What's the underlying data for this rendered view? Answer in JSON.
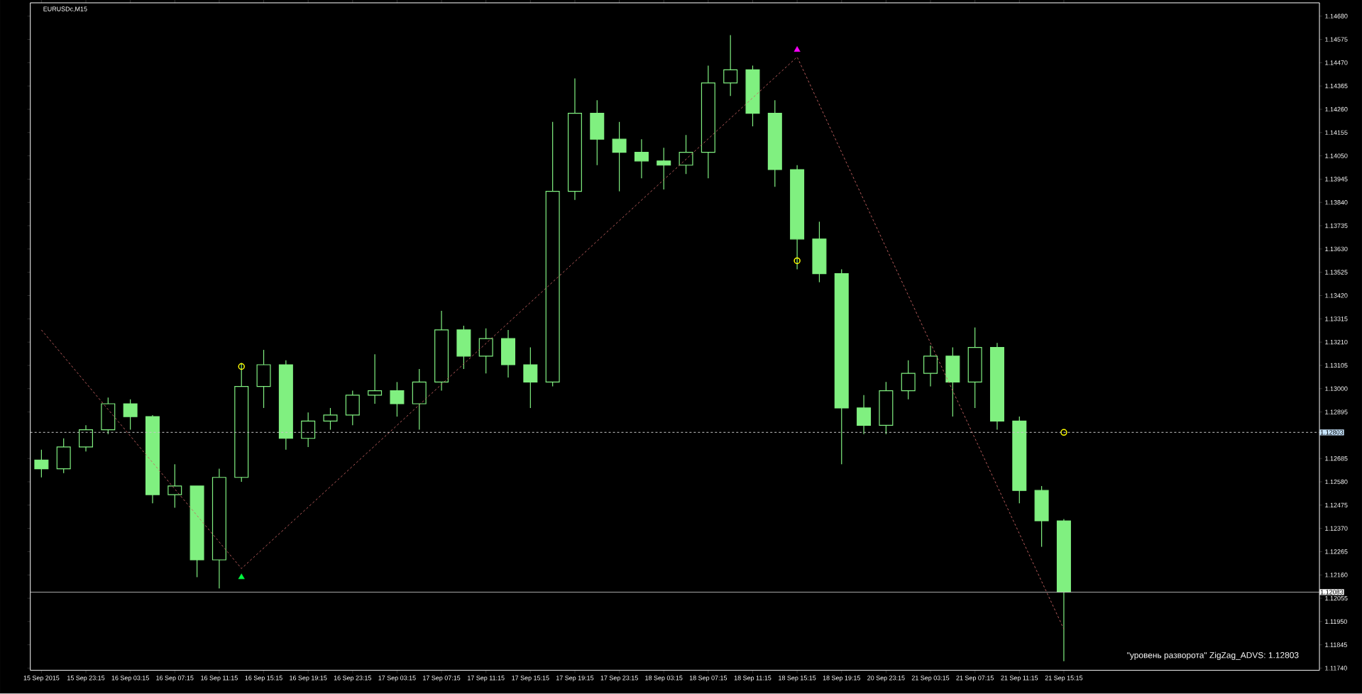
{
  "chart_data": {
    "type": "candlestick",
    "title": "EURUSDc,M15",
    "annotations": [
      "\"уровень разворота\" ZigZag_ADVS:   1.12803"
    ],
    "color": "#80f080",
    "categories": [
      "15 Sep 2015",
      null,
      "15 Sep 23:15",
      null,
      "16 Sep 03:15",
      null,
      "16 Sep 07:15",
      null,
      "16 Sep 11:15",
      null,
      "16 Sep 15:15",
      null,
      "16 Sep 19:15",
      null,
      "16 Sep 23:15",
      null,
      "17 Sep 03:15",
      null,
      "17 Sep 07:15",
      null,
      "17 Sep 11:15",
      null,
      "17 Sep 15:15",
      null,
      "17 Sep 19:15",
      null,
      "17 Sep 23:15",
      null,
      "18 Sep 03:15",
      null,
      "18 Sep 07:15",
      null,
      "18 Sep 11:15",
      null,
      "18 Sep 15:15",
      null,
      "18 Sep 19:15",
      null,
      "20 Sep 23:15",
      null,
      "21 Sep 03:15",
      null,
      "21 Sep 07:15",
      null,
      "21 Sep 11:15",
      null,
      "21 Sep 15:15",
      null,
      null,
      null,
      null,
      null,
      null,
      null,
      null,
      null,
      null,
      null
    ],
    "ohlc": [
      [
        1.12678,
        1.12725,
        1.126,
        1.12639
      ],
      [
        1.12639,
        1.12776,
        1.12619,
        1.12737
      ],
      [
        1.12737,
        1.12835,
        1.12717,
        1.12815
      ],
      [
        1.12815,
        1.1296,
        1.12795,
        1.12932
      ],
      [
        1.12932,
        1.12952,
        1.12815,
        1.12874
      ],
      [
        1.12874,
        1.12881,
        1.12483,
        1.12522
      ],
      [
        1.12522,
        1.12659,
        1.12463,
        1.12561
      ],
      [
        1.12561,
        1.12561,
        1.1215,
        1.12228
      ],
      [
        1.12228,
        1.12639,
        1.12099,
        1.126
      ],
      [
        1.126,
        1.13116,
        1.1258,
        1.1301
      ],
      [
        1.1301,
        1.13175,
        1.12913,
        1.13108
      ],
      [
        1.13108,
        1.13128,
        1.12725,
        1.12776
      ],
      [
        1.12776,
        1.12893,
        1.12737,
        1.12854
      ],
      [
        1.12854,
        1.12913,
        1.12815,
        1.12881
      ],
      [
        1.12881,
        1.12991,
        1.12835,
        1.12971
      ],
      [
        1.12971,
        1.13155,
        1.12932,
        1.12991
      ],
      [
        1.12991,
        1.1303,
        1.12874,
        1.12932
      ],
      [
        1.12932,
        1.13089,
        1.12815,
        1.1303
      ],
      [
        1.1303,
        1.13351,
        1.12991,
        1.13265
      ],
      [
        1.13265,
        1.13284,
        1.13089,
        1.13147
      ],
      [
        1.13147,
        1.13272,
        1.13069,
        1.13226
      ],
      [
        1.13226,
        1.13265,
        1.1305,
        1.13108
      ],
      [
        1.13108,
        1.13186,
        1.12913,
        1.1303
      ],
      [
        1.1303,
        1.14203,
        1.1301,
        1.1389
      ],
      [
        1.1389,
        1.14399,
        1.13851,
        1.14242
      ],
      [
        1.14242,
        1.14301,
        1.14008,
        1.14125
      ],
      [
        1.14125,
        1.14203,
        1.1389,
        1.14066
      ],
      [
        1.14066,
        1.14125,
        1.13949,
        1.14027
      ],
      [
        1.14027,
        1.14086,
        1.13898,
        1.14008
      ],
      [
        1.14008,
        1.14144,
        1.13968,
        1.14066
      ],
      [
        1.14066,
        1.14457,
        1.13949,
        1.14379
      ],
      [
        1.14379,
        1.14594,
        1.1432,
        1.14438
      ],
      [
        1.14438,
        1.14457,
        1.14183,
        1.14242
      ],
      [
        1.14242,
        1.14301,
        1.1391,
        1.13988
      ],
      [
        1.13988,
        1.14008,
        1.13538,
        1.13675
      ],
      [
        1.13675,
        1.13753,
        1.1348,
        1.13519
      ],
      [
        1.13519,
        1.13538,
        1.12659,
        1.12913
      ],
      [
        1.12913,
        1.12971,
        1.12795,
        1.12835
      ],
      [
        1.12835,
        1.1303,
        1.12795,
        1.12991
      ],
      [
        1.12991,
        1.13128,
        1.12952,
        1.13069
      ],
      [
        1.13069,
        1.13194,
        1.1301,
        1.13147
      ],
      [
        1.13147,
        1.13186,
        1.12874,
        1.1303
      ],
      [
        1.1303,
        1.13276,
        1.12913,
        1.13186
      ],
      [
        1.13186,
        1.13206,
        1.12815,
        1.12854
      ],
      [
        1.12854,
        1.12874,
        1.12483,
        1.12541
      ],
      [
        1.12541,
        1.12561,
        1.12287,
        1.12404
      ],
      [
        1.12404,
        1.12412,
        1.11771,
        1.12083
      ],
      null,
      null,
      null,
      null,
      null,
      null,
      null,
      null,
      null,
      null,
      null
    ],
    "series": [
      {
        "type": "line",
        "color": "#c86464",
        "line_style": "dashed",
        "marker": "none",
        "values": [
          1.13265,
          null,
          null,
          null,
          null,
          null,
          null,
          null,
          null,
          1.12189,
          null,
          null,
          null,
          null,
          null,
          null,
          null,
          null,
          null,
          null,
          null,
          null,
          null,
          null,
          null,
          null,
          null,
          null,
          null,
          null,
          null,
          null,
          null,
          null,
          1.14496,
          null,
          null,
          null,
          null,
          null,
          null,
          null,
          null,
          null,
          null,
          null,
          1.11916,
          null,
          null,
          null,
          null,
          null,
          null,
          null,
          null,
          null,
          null,
          null
        ]
      },
      {
        "type": "scatter",
        "color": "#ffff00",
        "marker": "circle",
        "values": [
          null,
          null,
          null,
          null,
          null,
          null,
          null,
          null,
          null,
          1.131,
          null,
          null,
          null,
          null,
          null,
          null,
          null,
          null,
          null,
          null,
          null,
          null,
          null,
          null,
          null,
          null,
          null,
          null,
          null,
          null,
          null,
          null,
          null,
          null,
          1.13577,
          null,
          null,
          null,
          null,
          null,
          null,
          null,
          null,
          null,
          null,
          null,
          1.12803,
          null,
          null,
          null,
          null,
          null,
          null,
          null,
          null,
          null,
          null,
          null
        ]
      },
      {
        "type": "scatter",
        "color": "#00ff40",
        "marker": "triangle",
        "values": [
          null,
          null,
          null,
          null,
          null,
          null,
          null,
          null,
          null,
          1.1215,
          null,
          null,
          null,
          null,
          null,
          null,
          null,
          null,
          null,
          null,
          null,
          null,
          null,
          null,
          null,
          null,
          null,
          null,
          null,
          null,
          null,
          null,
          null,
          null,
          null,
          null,
          null,
          null,
          null,
          null,
          null,
          null,
          null,
          null,
          null,
          null,
          null,
          null,
          null,
          null,
          null,
          null,
          null,
          null,
          null,
          null,
          null,
          null
        ]
      },
      {
        "type": "scatter",
        "color": "#ff00ff",
        "marker": "triangle",
        "values": [
          null,
          null,
          null,
          null,
          null,
          null,
          null,
          null,
          null,
          null,
          null,
          null,
          null,
          null,
          null,
          null,
          null,
          null,
          null,
          null,
          null,
          null,
          null,
          null,
          null,
          null,
          null,
          null,
          null,
          null,
          null,
          null,
          null,
          null,
          1.14528,
          null,
          null,
          null,
          null,
          null,
          null,
          null,
          null,
          null,
          null,
          null,
          null,
          null,
          null,
          null,
          null,
          null,
          null,
          null,
          null,
          null,
          null,
          null
        ]
      }
    ],
    "ref_lines": [
      {
        "axis": "y",
        "value": 1.12803,
        "label": "1.12803",
        "color": "#c8c8c8",
        "line_style": "dashed"
      },
      {
        "axis": "y",
        "value": 1.12083,
        "label": "1.12083",
        "color": "#c8c8c8",
        "line_style": "solid"
      }
    ],
    "ylim": [
      1.1173,
      1.1474
    ],
    "yticks": [
      {
        "value": 1.1174,
        "label": "1.11740"
      },
      {
        "value": 1.11845,
        "label": "1.11845"
      },
      {
        "value": 1.1195,
        "label": "1.11950"
      },
      {
        "value": 1.12055,
        "label": "1.12055"
      },
      {
        "value": 1.1216,
        "label": "1.12160"
      },
      {
        "value": 1.12265,
        "label": "1.12265"
      },
      {
        "value": 1.1237,
        "label": "1.12370"
      },
      {
        "value": 1.12475,
        "label": "1.12475"
      },
      {
        "value": 1.1258,
        "label": "1.12580"
      },
      {
        "value": 1.12685,
        "label": "1.12685"
      },
      {
        "value": 1.12895,
        "label": "1.12895"
      },
      {
        "value": 1.13,
        "label": "1.13000"
      },
      {
        "value": 1.13105,
        "label": "1.13105"
      },
      {
        "value": 1.1321,
        "label": "1.13210"
      },
      {
        "value": 1.13315,
        "label": "1.13315"
      },
      {
        "value": 1.1342,
        "label": "1.13420"
      },
      {
        "value": 1.13525,
        "label": "1.13525"
      },
      {
        "value": 1.1363,
        "label": "1.13630"
      },
      {
        "value": 1.13735,
        "label": "1.13735"
      },
      {
        "value": 1.1384,
        "label": "1.13840"
      },
      {
        "value": 1.13945,
        "label": "1.13945"
      },
      {
        "value": 1.1405,
        "label": "1.14050"
      },
      {
        "value": 1.14155,
        "label": "1.14155"
      },
      {
        "value": 1.1426,
        "label": "1.14260"
      },
      {
        "value": 1.14365,
        "label": "1.14365"
      },
      {
        "value": 1.1447,
        "label": "1.14470"
      },
      {
        "value": 1.14575,
        "label": "1.14575"
      },
      {
        "value": 1.1468,
        "label": "1.14680"
      }
    ]
  }
}
